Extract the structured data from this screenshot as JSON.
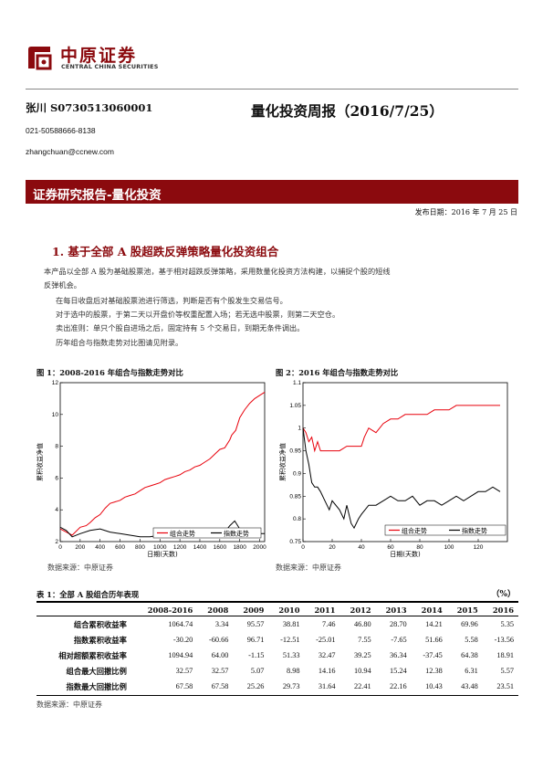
{
  "header": {
    "logo_cn": "中原证券",
    "logo_en": "CENTRAL CHINA SECURITIES",
    "author": "张川  S0730513060001",
    "phone": "021-50588666-8138",
    "email": "zhangchuan@ccnew.com",
    "title": "量化投资周报（2016/7/25）"
  },
  "banner": "证券研究报告-量化投资",
  "publish_date": "发布日期：2016 年 7 月 25 日",
  "section1": {
    "heading": "1. 基于全部 A 股超跌反弹策略量化投资组合",
    "paragraphs": [
      "本产品以全部 A 股为基础股票池，基于相对超跌反弹策略，采用数量化投资方法构建，以捕捉个股的短线",
      "反弹机会。",
      "在每日收盘后对基础股票池进行筛选，判断是否有个股发生交易信号。",
      "对于选中的股票，于第二天以开盘价等权重配置入场；若无选中股票，则第二天空仓。",
      "卖出准则：单只个股自进场之后，固定持有 5 个交易日，到期无条件调出。",
      "历年组合与指数走势对比图请见附录。"
    ]
  },
  "figures": [
    {
      "title": "图 1：2008-2016 年组合与指数走势对比",
      "source": "数据来源：中原证券",
      "chart_data": {
        "type": "line",
        "xlabel": "日期(天数)",
        "ylabel": "累积收益净值",
        "xlim": [
          0,
          2050
        ],
        "ylim": [
          2,
          12
        ],
        "xticks": [
          "0",
          "200",
          "400",
          "600",
          "800",
          "1000",
          "1200",
          "1400",
          "1600",
          "1800",
          "2000"
        ],
        "yticks": [
          "2",
          "4",
          "6",
          "8",
          "10",
          "12"
        ],
        "legend": [
          "组合走势",
          "指数走势"
        ],
        "series": [
          {
            "name": "组合走势",
            "color": "#e8000b",
            "x": [
              0,
              60,
              120,
              200,
              260,
              300,
              350,
              400,
              450,
              500,
              550,
              600,
              650,
              700,
              750,
              800,
              850,
              900,
              950,
              1000,
              1050,
              1100,
              1150,
              1200,
              1250,
              1300,
              1350,
              1400,
              1450,
              1500,
              1550,
              1600,
              1650,
              1700,
              1720,
              1760,
              1800,
              1850,
              1900,
              1950,
              2000,
              2050
            ],
            "y": [
              2.8,
              2.6,
              2.4,
              2.9,
              3.0,
              3.2,
              3.5,
              3.7,
              4.1,
              4.4,
              4.5,
              4.6,
              4.8,
              4.9,
              5.0,
              5.2,
              5.4,
              5.5,
              5.6,
              5.7,
              5.9,
              6.0,
              6.1,
              6.2,
              6.4,
              6.5,
              6.7,
              6.8,
              7.0,
              7.2,
              7.5,
              7.8,
              7.9,
              8.4,
              8.7,
              9.0,
              9.8,
              10.3,
              10.7,
              11.0,
              11.2,
              11.4
            ]
          },
          {
            "name": "指数走势",
            "color": "#000000",
            "x": [
              0,
              60,
              120,
              200,
              300,
              400,
              500,
              600,
              700,
              800,
              900,
              1000,
              1100,
              1200,
              1300,
              1400,
              1500,
              1600,
              1650,
              1700,
              1750,
              1800,
              1850,
              1900,
              2000,
              2050
            ],
            "y": [
              2.9,
              2.7,
              2.3,
              2.5,
              2.7,
              2.8,
              2.6,
              2.5,
              2.4,
              2.3,
              2.3,
              2.4,
              2.3,
              2.3,
              2.4,
              2.3,
              2.3,
              2.4,
              2.6,
              3.0,
              3.3,
              2.8,
              2.5,
              2.4,
              2.5,
              2.5
            ]
          }
        ]
      }
    },
    {
      "title": "图 2：2016 年组合与指数走势对比",
      "source": "数据来源：中原证券",
      "chart_data": {
        "type": "line",
        "xlabel": "日期(天数)",
        "ylabel": "累积收益净值",
        "xlim": [
          0,
          140
        ],
        "ylim": [
          0.75,
          1.1
        ],
        "xticks": [
          "0",
          "20",
          "40",
          "60",
          "80",
          "100",
          "120"
        ],
        "yticks": [
          "0.75",
          "0.8",
          "0.85",
          "0.9",
          "0.95",
          "1",
          "1.05",
          "1.1"
        ],
        "legend": [
          "组合走势",
          "指数走势"
        ],
        "series": [
          {
            "name": "组合走势",
            "color": "#e8000b",
            "x": [
              0,
              2,
              4,
              6,
              8,
              10,
              12,
              15,
              20,
              25,
              30,
              35,
              40,
              42,
              45,
              50,
              55,
              60,
              65,
              70,
              75,
              80,
              85,
              90,
              95,
              100,
              105,
              110,
              115,
              120,
              125,
              130,
              135
            ],
            "y": [
              1.0,
              0.99,
              0.97,
              0.98,
              0.95,
              0.97,
              0.95,
              0.95,
              0.95,
              0.95,
              0.96,
              0.96,
              0.96,
              0.98,
              1.0,
              0.99,
              1.01,
              1.02,
              1.02,
              1.03,
              1.03,
              1.03,
              1.03,
              1.04,
              1.04,
              1.04,
              1.05,
              1.05,
              1.05,
              1.05,
              1.05,
              1.05,
              1.05
            ]
          },
          {
            "name": "指数走势",
            "color": "#000000",
            "x": [
              0,
              2,
              4,
              6,
              8,
              10,
              12,
              15,
              18,
              20,
              25,
              28,
              30,
              33,
              35,
              38,
              40,
              45,
              50,
              55,
              60,
              65,
              70,
              75,
              80,
              85,
              90,
              95,
              100,
              105,
              110,
              115,
              120,
              125,
              130,
              135
            ],
            "y": [
              1.0,
              0.95,
              0.92,
              0.88,
              0.87,
              0.87,
              0.86,
              0.84,
              0.82,
              0.84,
              0.82,
              0.8,
              0.83,
              0.79,
              0.78,
              0.8,
              0.81,
              0.83,
              0.83,
              0.84,
              0.85,
              0.84,
              0.84,
              0.85,
              0.83,
              0.84,
              0.84,
              0.83,
              0.84,
              0.85,
              0.84,
              0.85,
              0.86,
              0.86,
              0.87,
              0.86
            ]
          }
        ]
      }
    }
  ],
  "table": {
    "title": "表 1：全部 A 股组合历年表现",
    "unit": "（%）",
    "columns": [
      "",
      "2008-2016",
      "2008",
      "2009",
      "2010",
      "2011",
      "2012",
      "2013",
      "2014",
      "2015",
      "2016"
    ],
    "rows": [
      [
        "组合累积收益率",
        "1064.74",
        "3.34",
        "95.57",
        "38.81",
        "7.46",
        "46.80",
        "28.70",
        "14.21",
        "69.96",
        "5.35"
      ],
      [
        "指数累积收益率",
        "-30.20",
        "-60.66",
        "96.71",
        "-12.51",
        "-25.01",
        "7.55",
        "-7.65",
        "51.66",
        "5.58",
        "-13.56"
      ],
      [
        "相对超额累积收益率",
        "1094.94",
        "64.00",
        "-1.15",
        "51.33",
        "32.47",
        "39.25",
        "36.34",
        "-37.45",
        "64.38",
        "18.91"
      ],
      [
        "组合最大回撤比例",
        "32.57",
        "32.57",
        "5.07",
        "8.98",
        "14.16",
        "10.94",
        "15.24",
        "12.38",
        "6.31",
        "5.57"
      ],
      [
        "指数最大回撤比例",
        "67.58",
        "67.58",
        "25.26",
        "29.73",
        "31.64",
        "22.41",
        "22.16",
        "10.43",
        "43.48",
        "23.51"
      ]
    ],
    "source": "数据来源：中原证券"
  },
  "colors": {
    "brand": "#8b0a0e",
    "portfolio": "#e8000b",
    "index": "#000000"
  }
}
